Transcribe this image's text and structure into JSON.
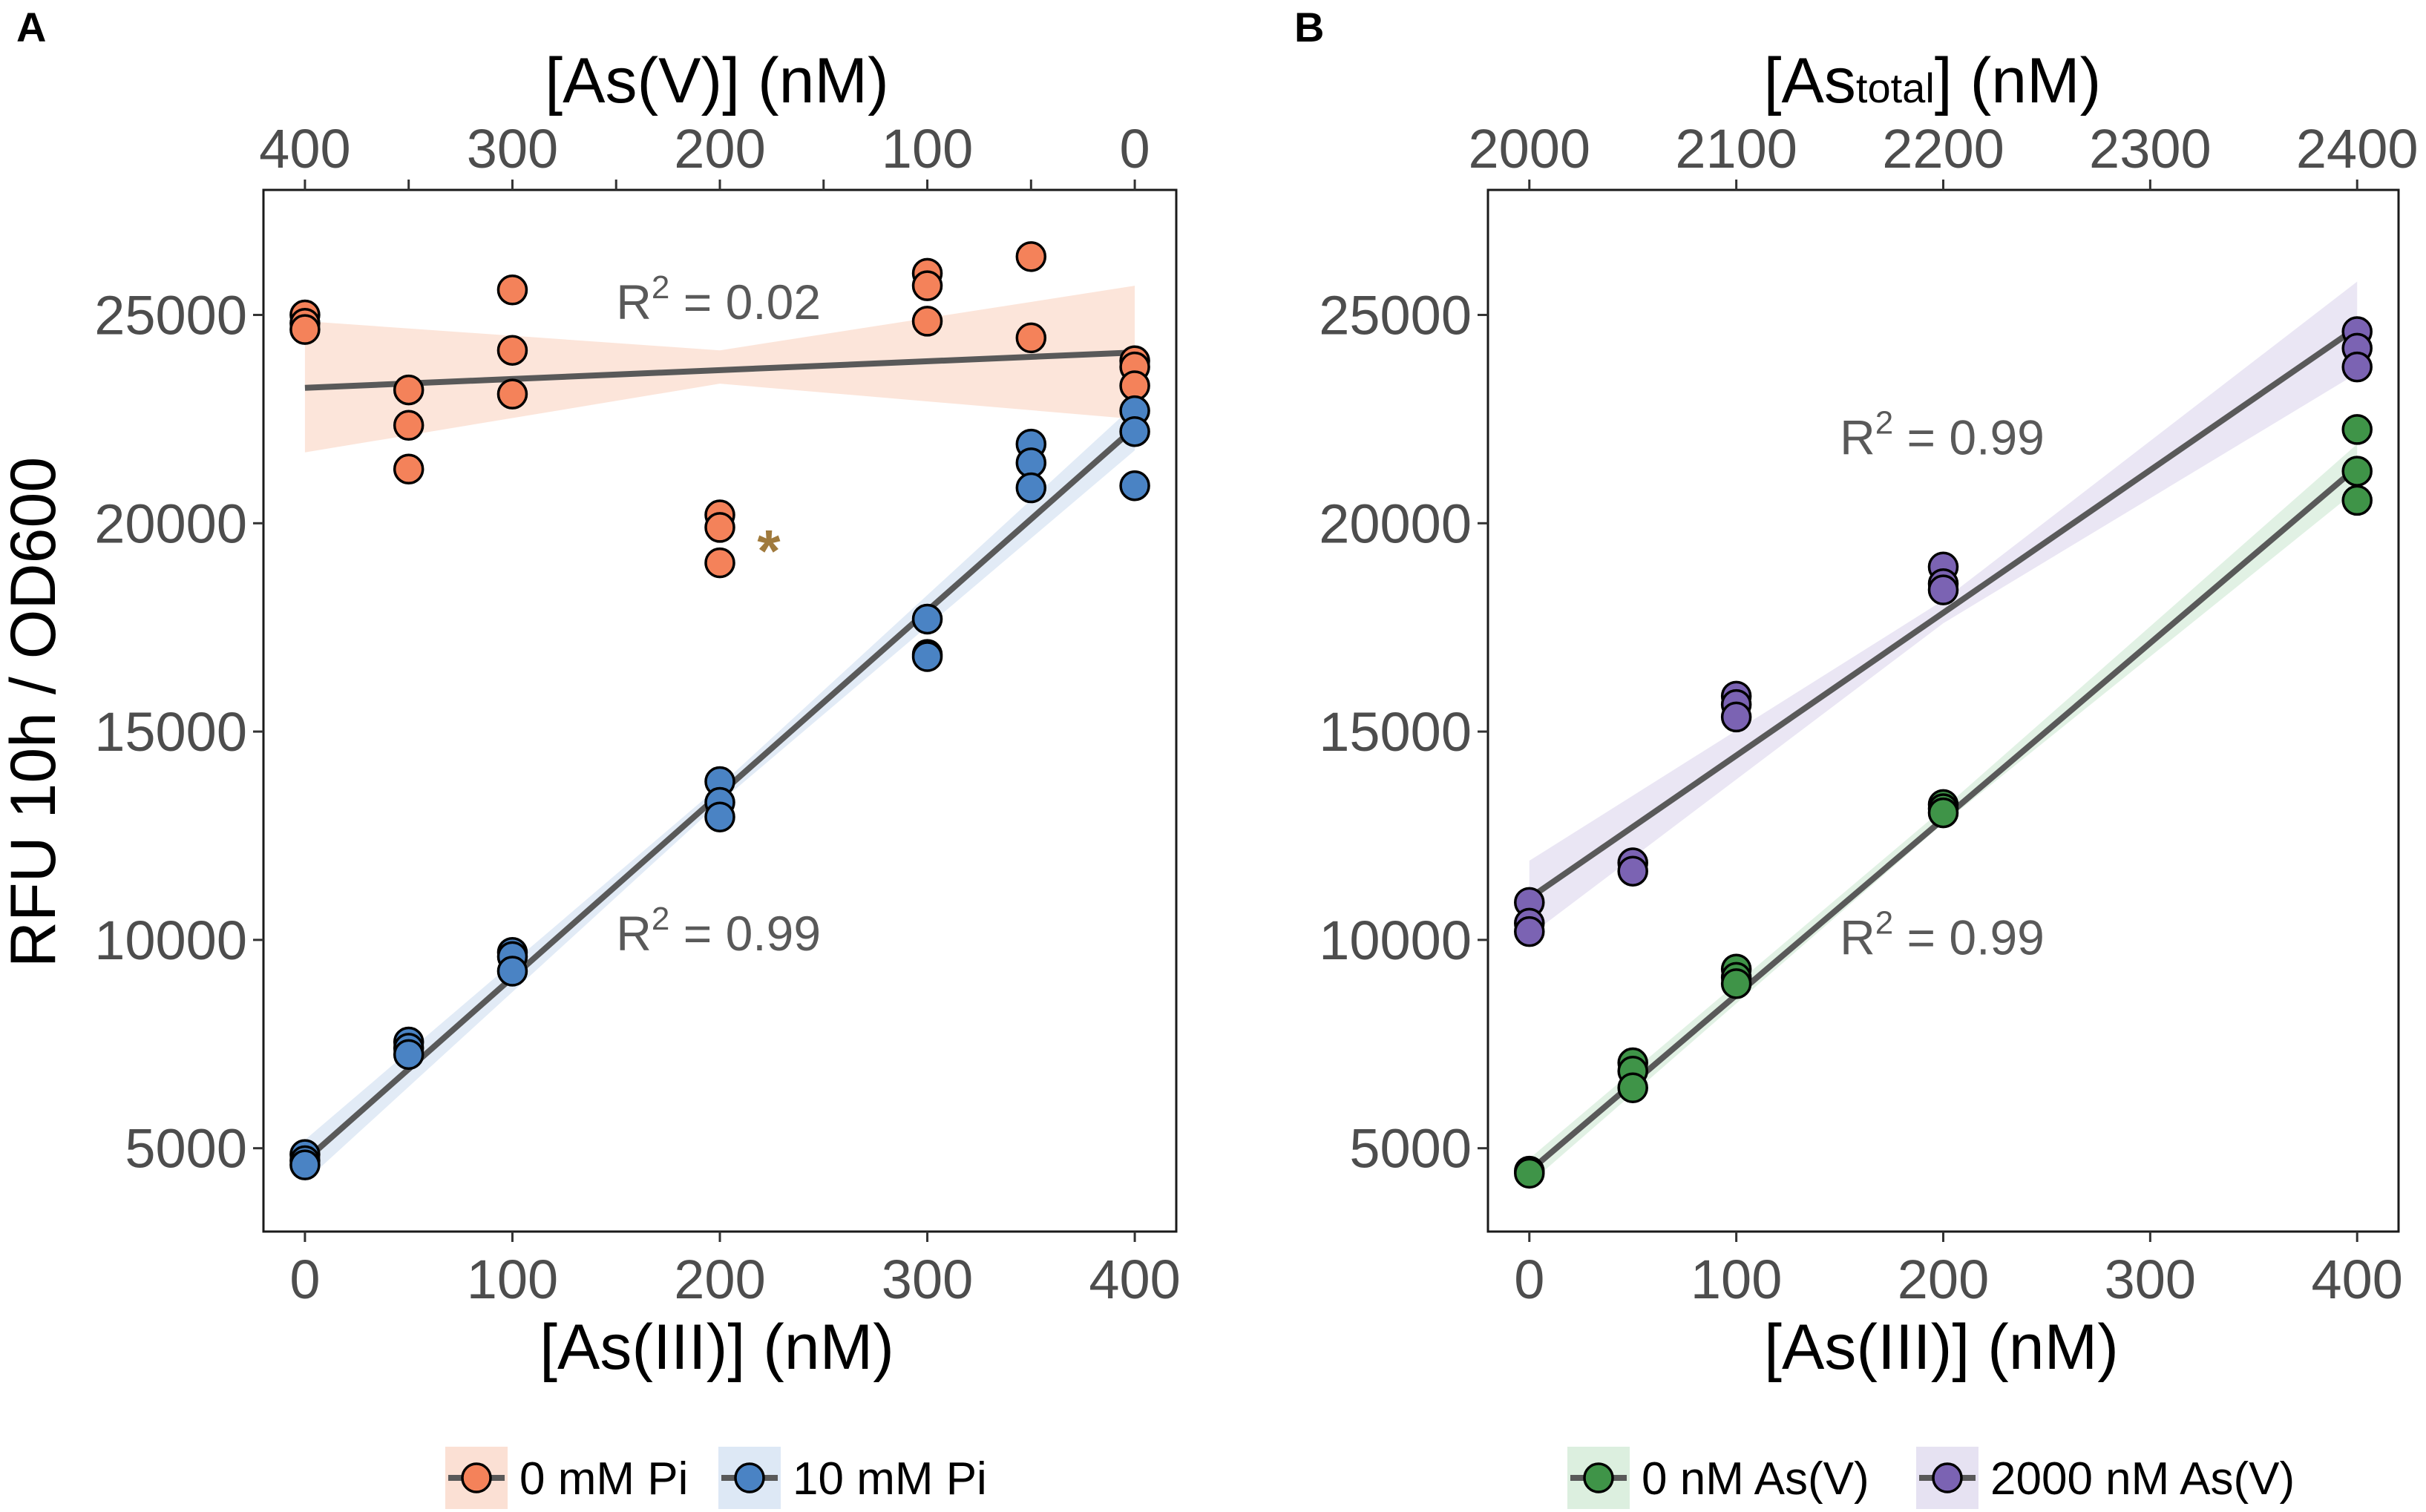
{
  "chart_data": [
    {
      "type": "scatter",
      "panel_label": "A",
      "xlabel": "[As(III)] (nM)",
      "ylabel": "RFU 10h / OD600",
      "top_xlabel": "[As(V)] (nM)",
      "xlim": [
        -20,
        420
      ],
      "ylim": [
        3000,
        28000
      ],
      "x_ticks": [
        0,
        100,
        200,
        300,
        400
      ],
      "x_tick_labels": [
        "0",
        "100",
        "200",
        "300",
        "400"
      ],
      "top_x_ticks": [
        0,
        50,
        100,
        150,
        200,
        250,
        300,
        350,
        400
      ],
      "top_x_tick_labels": [
        "400",
        "",
        "300",
        "",
        "200",
        "",
        "100",
        "",
        "0"
      ],
      "y_ticks": [
        5000,
        10000,
        15000,
        20000,
        25000
      ],
      "y_tick_labels": [
        "5000",
        "10000",
        "15000",
        "20000",
        "25000"
      ],
      "annotations": [
        {
          "kind": "r2",
          "x": 150,
          "y": 24900,
          "base": "R",
          "sup": "2",
          "value": " = 0.02"
        },
        {
          "kind": "r2",
          "x": 150,
          "y": 9750,
          "base": "R",
          "sup": "2",
          "value": " = 0.99"
        },
        {
          "kind": "marker",
          "x": 218,
          "y": 19350,
          "text": "*",
          "color": "#a07a3c"
        }
      ],
      "series": [
        {
          "name": "0 mM Pi",
          "color": "#f4825a",
          "band_color": "#fbe0d4",
          "points": [
            [
              0,
              25000
            ],
            [
              0,
              24800
            ],
            [
              0,
              24650
            ],
            [
              50,
              23200
            ],
            [
              50,
              22350
            ],
            [
              50,
              21300
            ],
            [
              100,
              25600
            ],
            [
              100,
              24150
            ],
            [
              100,
              23100
            ],
            [
              200,
              20200
            ],
            [
              200,
              19900
            ],
            [
              200,
              19050
            ],
            [
              300,
              26000
            ],
            [
              300,
              25700
            ],
            [
              300,
              24850
            ],
            [
              350,
              26400
            ],
            [
              350,
              24450
            ],
            [
              400,
              23900
            ],
            [
              400,
              23750
            ],
            [
              400,
              23300
            ]
          ],
          "fit": [
            [
              0,
              23250
            ],
            [
              400,
              24100
            ]
          ],
          "band_upper": [
            [
              0,
              24850
            ],
            [
              200,
              24150
            ],
            [
              400,
              25700
            ]
          ],
          "band_lower": [
            [
              0,
              21700
            ],
            [
              200,
              23350
            ],
            [
              400,
              22500
            ]
          ]
        },
        {
          "name": "10 mM Pi",
          "color": "#4a83c4",
          "band_color": "#dde8f5",
          "points": [
            [
              0,
              4850
            ],
            [
              0,
              4700
            ],
            [
              0,
              4600
            ],
            [
              50,
              7550
            ],
            [
              50,
              7400
            ],
            [
              50,
              7250
            ],
            [
              100,
              9700
            ],
            [
              100,
              9600
            ],
            [
              100,
              9250
            ],
            [
              200,
              13800
            ],
            [
              200,
              13300
            ],
            [
              200,
              12950
            ],
            [
              300,
              17700
            ],
            [
              300,
              16850
            ],
            [
              300,
              16800
            ],
            [
              350,
              21900
            ],
            [
              350,
              21450
            ],
            [
              350,
              20850
            ],
            [
              400,
              22700
            ],
            [
              400,
              22200
            ],
            [
              400,
              20900
            ]
          ],
          "fit": [
            [
              0,
              4700
            ],
            [
              400,
              22300
            ]
          ],
          "band_upper": [
            [
              0,
              5200
            ],
            [
              200,
              13700
            ],
            [
              400,
              22850
            ]
          ],
          "band_lower": [
            [
              0,
              4200
            ],
            [
              200,
              13300
            ],
            [
              400,
              21750
            ]
          ]
        }
      ],
      "legend": {
        "position": "bottom",
        "entries": [
          "0 mM Pi",
          "10 mM Pi"
        ]
      }
    },
    {
      "type": "scatter",
      "panel_label": "B",
      "xlabel": "[As(III)] (nM)",
      "top_xlabel_base": "[As",
      "top_xlabel_sub": "total",
      "top_xlabel_end": "] (nM)",
      "xlim": [
        -20,
        420
      ],
      "ylim": [
        3000,
        28000
      ],
      "x_ticks": [
        0,
        100,
        200,
        300,
        400
      ],
      "x_tick_labels": [
        "0",
        "100",
        "200",
        "300",
        "400"
      ],
      "top_x_ticks": [
        0,
        100,
        200,
        300,
        400
      ],
      "top_x_tick_labels": [
        "2000",
        "2100",
        "2200",
        "2300",
        "2400"
      ],
      "y_ticks": [
        5000,
        10000,
        15000,
        20000,
        25000
      ],
      "y_tick_labels": [
        "5000",
        "10000",
        "15000",
        "20000",
        "25000"
      ],
      "annotations": [
        {
          "kind": "r2",
          "x": 150,
          "y": 21650,
          "base": "R",
          "sup": "2",
          "value": " = 0.99"
        },
        {
          "kind": "r2",
          "x": 150,
          "y": 9650,
          "base": "R",
          "sup": "2",
          "value": " = 0.99"
        }
      ],
      "series": [
        {
          "name": "0 nM As(V)",
          "color": "#3f9448",
          "band_color": "#dcefdf",
          "points": [
            [
              0,
              4450
            ],
            [
              0,
              4400
            ],
            [
              50,
              7050
            ],
            [
              50,
              6850
            ],
            [
              50,
              6450
            ],
            [
              100,
              9300
            ],
            [
              100,
              9100
            ],
            [
              100,
              8950
            ],
            [
              200,
              13250
            ],
            [
              200,
              13150
            ],
            [
              200,
              13050
            ],
            [
              400,
              22250
            ],
            [
              400,
              21250
            ],
            [
              400,
              20550
            ]
          ],
          "fit": [
            [
              0,
              4450
            ],
            [
              400,
              21350
            ]
          ],
          "band_upper": [
            [
              0,
              4750
            ],
            [
              200,
              13150
            ],
            [
              400,
              21900
            ]
          ],
          "band_lower": [
            [
              0,
              4150
            ],
            [
              200,
              12800
            ],
            [
              400,
              20800
            ]
          ]
        },
        {
          "name": "2000 nM As(V)",
          "color": "#7b63b3",
          "band_color": "#e6e2f2",
          "points": [
            [
              0,
              10900
            ],
            [
              0,
              10400
            ],
            [
              0,
              10200
            ],
            [
              50,
              11850
            ],
            [
              50,
              11650
            ],
            [
              100,
              15850
            ],
            [
              100,
              15650
            ],
            [
              100,
              15350
            ],
            [
              200,
              18950
            ],
            [
              200,
              18550
            ],
            [
              200,
              18400
            ],
            [
              400,
              24600
            ],
            [
              400,
              24200
            ],
            [
              400,
              23750
            ]
          ],
          "fit": [
            [
              0,
              11000
            ],
            [
              400,
              24700
            ]
          ],
          "band_upper": [
            [
              0,
              11900
            ],
            [
              200,
              18150
            ],
            [
              400,
              25800
            ]
          ],
          "band_lower": [
            [
              0,
              10100
            ],
            [
              200,
              17600
            ],
            [
              400,
              23600
            ]
          ]
        }
      ],
      "legend": {
        "position": "bottom",
        "entries": [
          "0 nM As(V)",
          "2000 nM As(V)"
        ]
      }
    }
  ]
}
